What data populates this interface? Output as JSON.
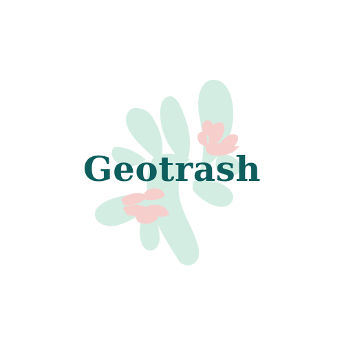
{
  "brand": {
    "name": "Geotrash"
  },
  "colors": {
    "background": "#ffffff",
    "wordmark": "#0e5e5e",
    "leaf_green": "#d3ede3",
    "leaf_pink": "#f6cfcd"
  },
  "icons": {
    "emblem": "seaweed-leaf-icon",
    "accent_top": "pink-hand-leaf-icon",
    "accent_bottom": "pink-hand-leaf-icon"
  }
}
